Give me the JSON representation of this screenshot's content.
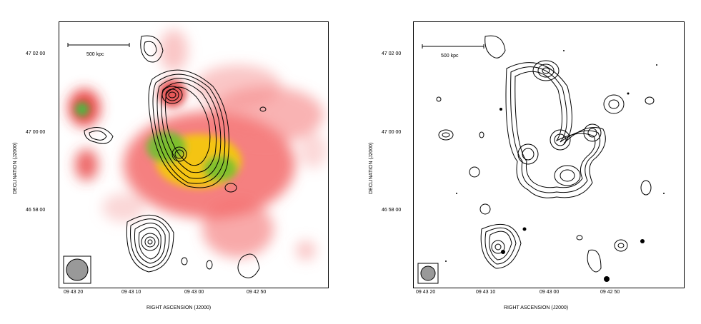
{
  "figure": {
    "panels": [
      {
        "id": "left",
        "y_axis_label": "DECLINATION (J2000)",
        "x_axis_label": "RIGHT ASCENSION (J2000)",
        "y_ticks": [
          "47 02 00",
          "47 00 00",
          "46 58 00"
        ],
        "x_ticks": [
          "09 43 20",
          "09 43 10",
          "09 43 00",
          "09 42 50"
        ],
        "scale_bar": "500 kpc"
      },
      {
        "id": "right",
        "y_axis_label": "DECLINATION (J2000)",
        "x_axis_label": "RIGHT ASCENSION (J2000)",
        "y_ticks": [
          "47 02 00",
          "47 00 00",
          "46 58 00"
        ],
        "x_ticks": [
          "09 43 20",
          "09 43 10",
          "09 43 00",
          "09 42 50"
        ],
        "scale_bar": "500 kpc"
      }
    ]
  }
}
